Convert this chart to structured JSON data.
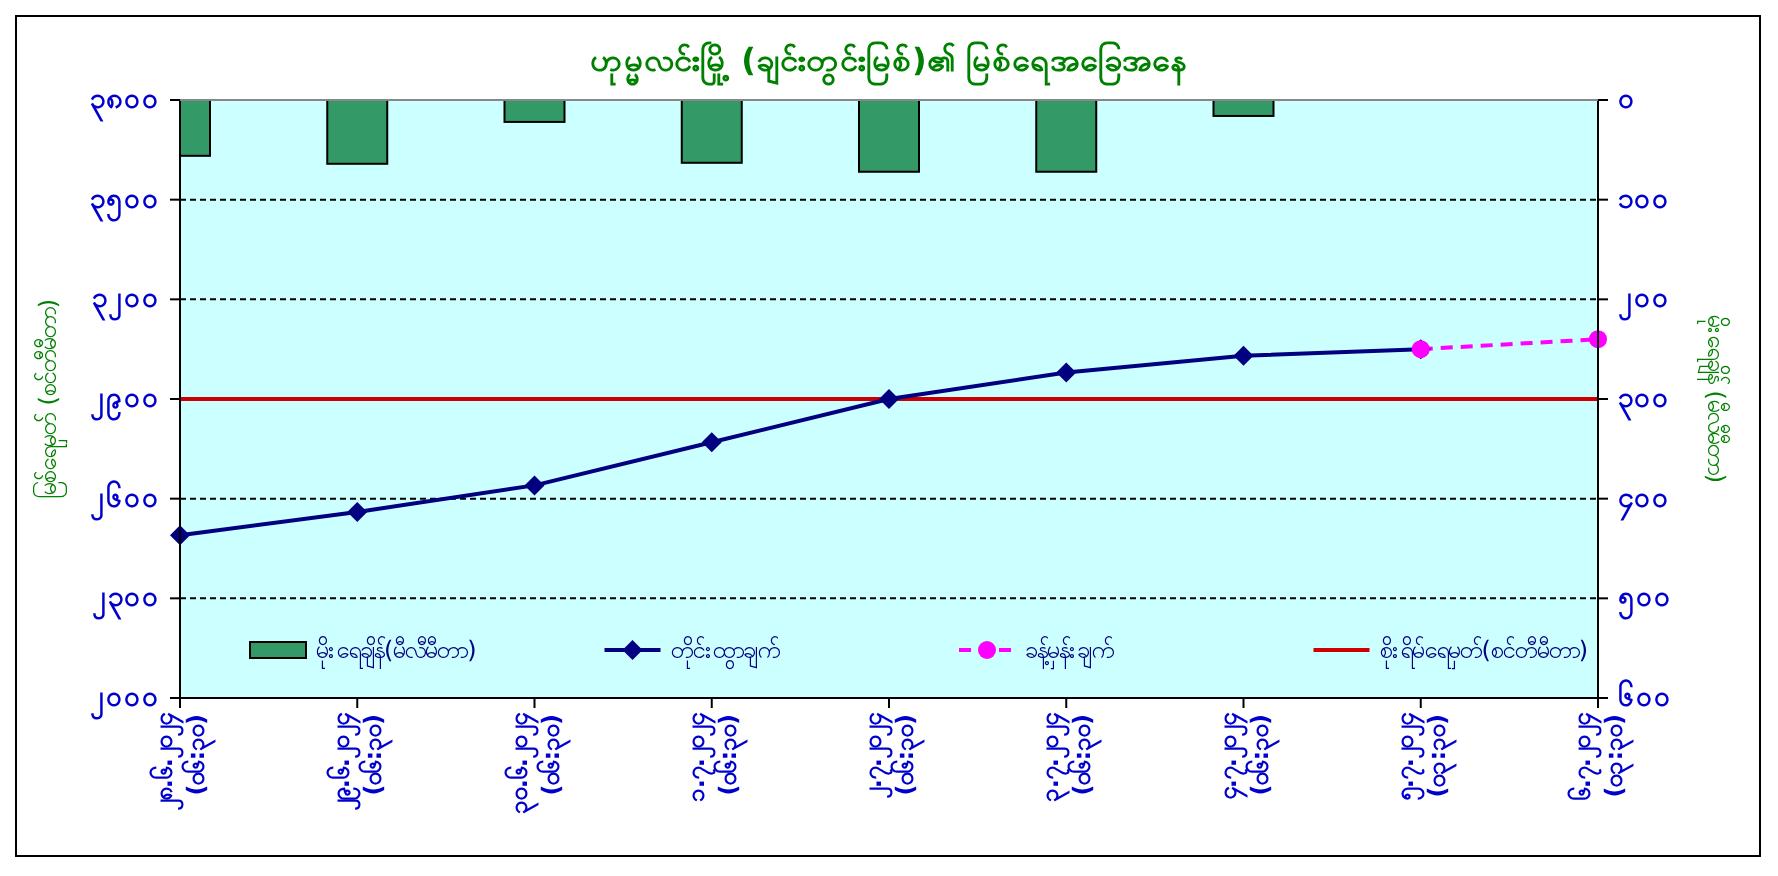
{
  "chart_data": {
    "type": "line",
    "title": "ဟုမ္မလင်းမြို့ (ချင်းတွင်းမြစ်)၏ မြစ်ရေအခြေအနေ",
    "ylabel": "မြစ်ရေမှတ် (စင်တီမီတာ)",
    "y2label": "မိုးရေချိန် (မီလီမီတာ)",
    "categories": [
      "၂၈.၆.၂၀၂၄\n(၀၆:၃၀)",
      "၂၉.၆.၂၀၂၄\n(၀၆:၃၀)",
      "၃၀.၆.၂၀၂၄\n(၀၆:၃၀)",
      "၁.၇.၂၀၂၄\n(၀၆:၃၀)",
      "၂.၇.၂၀၂၄\n(၀၆:၃၀)",
      "၃.၇.၂၀၂၄\n(၀၆:၃၀)",
      "၄.၇.၂၀၂၄\n(၀၆:၃၀)",
      "၅.၇.၂၀၂၄\n(၀၃:၃၀)",
      "၆.၇.၂၀၂၄\n(၀၃:၃၀)"
    ],
    "ylim": [
      2000,
      3800
    ],
    "yticks": [
      {
        "value": 2000,
        "label": "၂၀၀၀"
      },
      {
        "value": 2300,
        "label": "၂၃၀၀"
      },
      {
        "value": 2600,
        "label": "၂၆၀၀"
      },
      {
        "value": 2900,
        "label": "၂၉၀၀"
      },
      {
        "value": 3200,
        "label": "၃၂၀၀"
      },
      {
        "value": 3500,
        "label": "၃၅၀၀"
      },
      {
        "value": 3800,
        "label": "၃၈၀၀"
      }
    ],
    "y2lim": [
      600,
      0
    ],
    "y2ticks": [
      {
        "value": 0,
        "label": "၀"
      },
      {
        "value": 100,
        "label": "၁၀၀"
      },
      {
        "value": 200,
        "label": "၂၀၀"
      },
      {
        "value": 300,
        "label": "၃၀၀"
      },
      {
        "value": 400,
        "label": "၄၀၀"
      },
      {
        "value": 500,
        "label": "၅၀၀"
      },
      {
        "value": 600,
        "label": "၆၀၀"
      }
    ],
    "grid": "y",
    "legend": "bottom",
    "series": [
      {
        "name": "မိုးရေချိန်(မီလီမီတာ)",
        "type": "bar",
        "axis": "y2",
        "color": "#339966",
        "values": [
          56,
          64,
          22,
          63,
          72,
          72,
          16,
          null,
          null
        ]
      },
      {
        "name": "တိုင်းထွာချက်",
        "color": "#000080",
        "marker": "diamond",
        "values": [
          2490,
          2560,
          2640,
          2770,
          2900,
          2980,
          3030,
          3050,
          null
        ]
      },
      {
        "name": "ခန့်မှန်းချက်",
        "color": "#ff00ff",
        "marker": "circle",
        "line_style": "dashed",
        "values": [
          null,
          null,
          null,
          null,
          null,
          null,
          null,
          3050,
          3080
        ]
      }
    ],
    "ref_lines": [
      {
        "axis": "y",
        "value": 2900,
        "label": "စိုးရိမ်ရေမှတ်(စင်တီမီတာ)",
        "color": "#cc0000"
      }
    ]
  }
}
